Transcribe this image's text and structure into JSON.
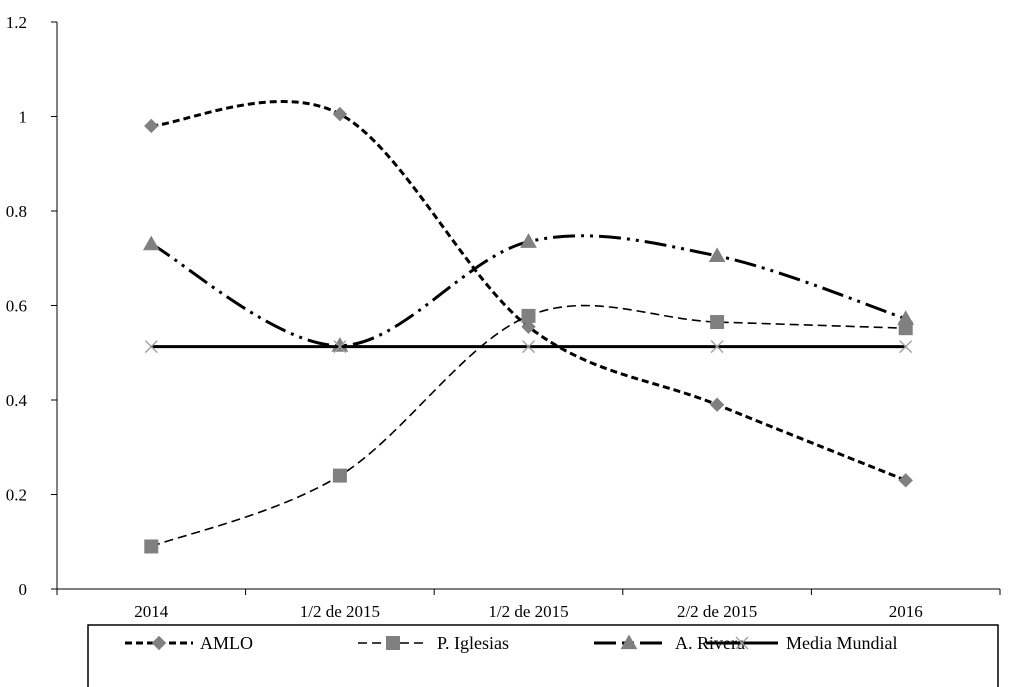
{
  "chart_data": {
    "type": "line",
    "title": "",
    "xlabel": "",
    "ylabel": "",
    "categories": [
      "2014",
      "1/2 de 2015",
      "1/2 de 2015",
      "2/2 de 2015",
      "2016"
    ],
    "ylim": [
      0,
      1.2
    ],
    "yticks": [
      "0",
      "0.2",
      "0.4",
      "0.6",
      "0.8",
      "1",
      "1.2"
    ],
    "grid": false,
    "legend_position": "bottom",
    "series": [
      {
        "name": "AMLO",
        "values": [
          0.98,
          1.005,
          0.555,
          0.39,
          0.23
        ],
        "marker": "diamond",
        "dash": "short",
        "color": "#000000",
        "marker_color": "#808080"
      },
      {
        "name": "P. Iglesias",
        "values": [
          0.09,
          0.24,
          0.578,
          0.565,
          0.552
        ],
        "marker": "square",
        "dash": "long",
        "color": "#000000",
        "marker_color": "#808080"
      },
      {
        "name": "A. Rivera",
        "values": [
          0.73,
          0.515,
          0.735,
          0.705,
          0.572
        ],
        "marker": "triangle",
        "dash": "dash-dot-dot",
        "color": "#000000",
        "marker_color": "#808080"
      },
      {
        "name": "Media Mundial",
        "values": [
          0.513,
          0.513,
          0.513,
          0.513,
          0.513
        ],
        "marker": "x",
        "dash": "solid",
        "color": "#000000",
        "marker_color": "#a0a0a0"
      }
    ]
  }
}
